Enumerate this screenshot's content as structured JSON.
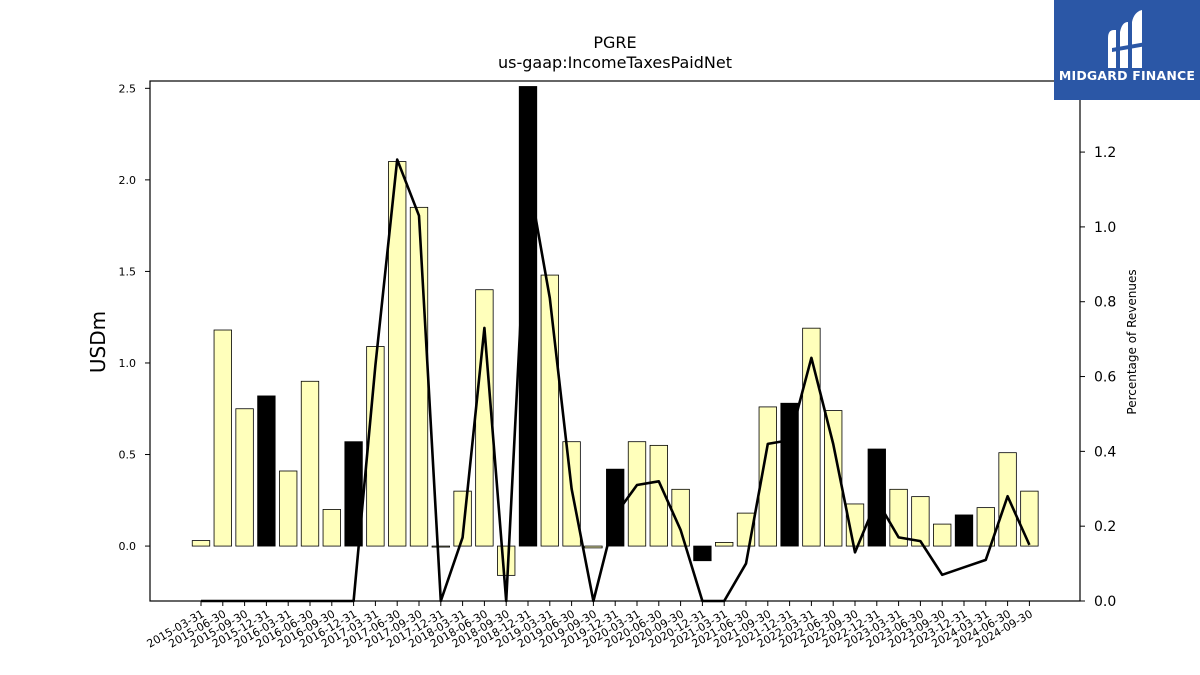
{
  "brand": {
    "name": "MIDGARD FINANCE",
    "bg_color": "#2b57a6",
    "mark": "midgard-logo-mark"
  },
  "chart_data": {
    "type": "bar",
    "title": "PGRE",
    "subtitle": "us-gaap:IncomeTaxesPaidNet",
    "ylabel": "USDm",
    "y2label": "Percentage of Revenues",
    "ylim": [
      -0.3,
      2.54
    ],
    "y2lim": [
      0.0,
      1.39
    ],
    "yticks": [
      "-0.3",
      "0.0",
      "0.5",
      "1.0",
      "1.5",
      "2.0",
      "2.5"
    ],
    "ytick_values": [
      0.0,
      0.5,
      1.0,
      1.5,
      2.0,
      2.5
    ],
    "y2tick_values": [
      0.0,
      0.2,
      0.4,
      0.6,
      0.8,
      1.0,
      1.2
    ],
    "categories": [
      "2015-03-31",
      "2015-06-30",
      "2015-09-30",
      "2015-12-31",
      "2016-03-31",
      "2016-06-30",
      "2016-09-30",
      "2016-12-31",
      "2017-03-31",
      "2017-06-30",
      "2017-09-30",
      "2017-12-31",
      "2018-03-31",
      "2018-06-30",
      "2018-09-30",
      "2018-12-31",
      "2019-03-31",
      "2019-06-30",
      "2019-09-30",
      "2019-12-31",
      "2020-03-31",
      "2020-06-30",
      "2020-09-30",
      "2020-12-31",
      "2021-03-31",
      "2021-06-30",
      "2021-09-30",
      "2021-12-31",
      "2022-03-31",
      "2022-06-30",
      "2022-09-30",
      "2022-12-31",
      "2023-03-31",
      "2023-06-30",
      "2023-09-30",
      "2023-12-31",
      "2024-03-31",
      "2024-06-30",
      "2024-09-30"
    ],
    "series": [
      {
        "type": "bar",
        "values": [
          0.03,
          1.18,
          0.75,
          0.82,
          0.41,
          0.9,
          0.2,
          0.57,
          1.09,
          2.1,
          1.85,
          0.0,
          0.3,
          1.4,
          -0.16,
          2.51,
          1.48,
          0.57,
          -0.01,
          0.42,
          0.57,
          0.55,
          0.31,
          -0.08,
          0.02,
          0.18,
          0.76,
          0.78,
          1.19,
          0.74,
          0.23,
          0.53,
          0.31,
          0.27,
          0.12,
          0.17,
          0.21,
          0.51,
          0.3
        ],
        "highlight": [
          false,
          false,
          false,
          true,
          false,
          false,
          false,
          true,
          false,
          false,
          false,
          false,
          false,
          false,
          false,
          true,
          false,
          false,
          false,
          true,
          false,
          false,
          false,
          true,
          false,
          false,
          false,
          true,
          false,
          false,
          false,
          true,
          false,
          false,
          false,
          true,
          false,
          false,
          false
        ],
        "color": "#ffffbb",
        "highlight_color": "#000000"
      },
      {
        "type": "line",
        "axis": "right",
        "values": [
          0.0,
          0.0,
          0.0,
          0.0,
          0.0,
          0.0,
          0.0,
          0.0,
          0.63,
          1.18,
          1.03,
          0.0,
          0.17,
          0.73,
          0.0,
          1.14,
          0.81,
          0.3,
          0.0,
          0.23,
          0.31,
          0.32,
          0.19,
          0.0,
          0.0,
          0.1,
          0.42,
          0.43,
          0.65,
          0.42,
          0.13,
          0.27,
          0.17,
          0.16,
          0.07,
          0.09,
          0.11,
          0.28,
          0.15
        ],
        "color": "#000000"
      }
    ],
    "grid": false
  }
}
